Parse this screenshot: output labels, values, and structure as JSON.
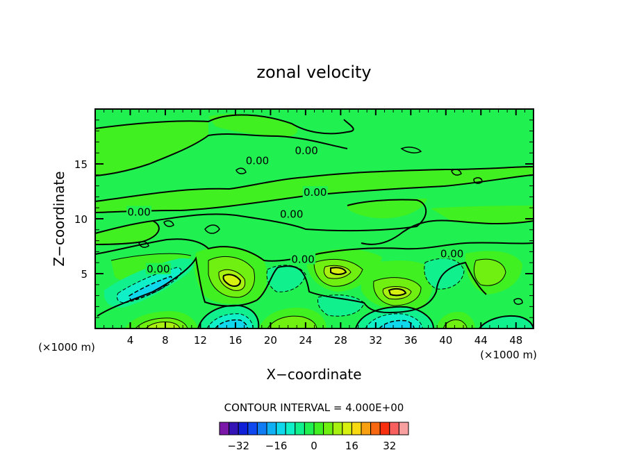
{
  "chart_data": {
    "type": "heatmap",
    "title": "zonal velocity",
    "xlabel": "X−coordinate",
    "ylabel": "Z−coordinate",
    "x_unit": "(×1000 m)",
    "x_unit_right": "(×1000 m)",
    "xlim": [
      0,
      50
    ],
    "ylim": [
      0,
      20
    ],
    "x_ticks": [
      4,
      8,
      12,
      16,
      20,
      24,
      28,
      32,
      36,
      40,
      44,
      48
    ],
    "y_ticks": [
      5,
      10,
      15
    ],
    "contour_interval_text": "CONTOUR INTERVAL = 4.000E+00",
    "contour_labels": [
      {
        "x": 18.5,
        "y": 15.3,
        "text": "0.00"
      },
      {
        "x": 24.1,
        "y": 16.2,
        "text": "0.00"
      },
      {
        "x": 5.0,
        "y": 10.6,
        "text": "0.00"
      },
      {
        "x": 25.1,
        "y": 12.4,
        "text": "0.00"
      },
      {
        "x": 22.4,
        "y": 10.4,
        "text": "0.00"
      },
      {
        "x": 23.7,
        "y": 6.3,
        "text": "0.00"
      },
      {
        "x": 7.2,
        "y": 5.4,
        "text": "0.00"
      },
      {
        "x": 40.7,
        "y": 6.8,
        "text": "0.00"
      }
    ],
    "colorbar": {
      "levels": [
        -36,
        -32,
        -28,
        -24,
        -20,
        -16,
        -12,
        -8,
        -4,
        0,
        4,
        8,
        12,
        16,
        20,
        24,
        28,
        32,
        36
      ],
      "tick_labels": [
        "−32",
        "−16",
        "0",
        "16",
        "32"
      ],
      "tick_values": [
        -32,
        -16,
        0,
        16,
        32
      ],
      "colors": [
        "#7a17a8",
        "#3414b4",
        "#1020d8",
        "#1048f0",
        "#107cf4",
        "#10b0f4",
        "#10d8ec",
        "#10f0c8",
        "#10f08c",
        "#20f050",
        "#40f020",
        "#70f010",
        "#a8f010",
        "#d8f010",
        "#f8d810",
        "#f8a010",
        "#f86810",
        "#f83010",
        "#f86060",
        "#f8a0a0"
      ]
    },
    "level_colors": {
      "neg12": "#10d8ec",
      "neg8": "#10f0c8",
      "neg4": "#10f08c",
      "zero": "#20f050",
      "pos4": "#40f020",
      "pos8": "#70f010",
      "pos12": "#a8f010",
      "pos16": "#d8f010"
    }
  }
}
